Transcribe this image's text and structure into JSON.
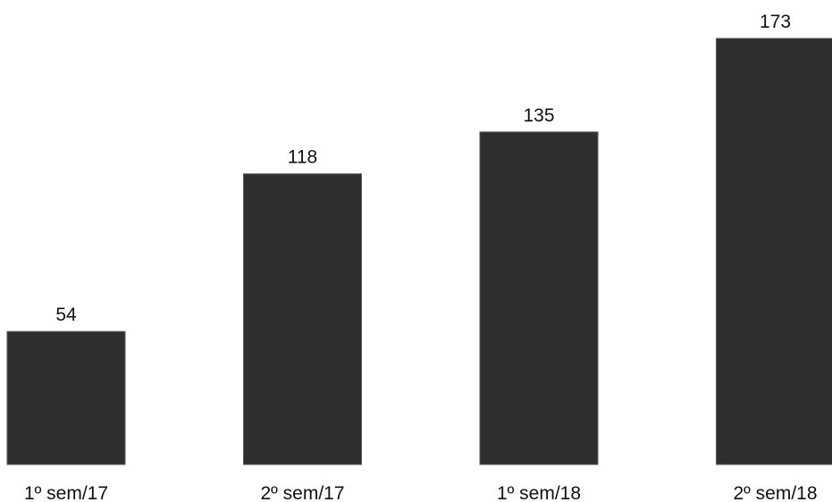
{
  "chart_data": {
    "type": "bar",
    "categories": [
      "1º sem/17",
      "2º sem/17",
      "1º sem/18",
      "2º sem/18"
    ],
    "values": [
      54,
      118,
      135,
      173
    ],
    "value_labels": [
      "54",
      "118",
      "135",
      "173"
    ],
    "title": "",
    "xlabel": "",
    "ylabel": "",
    "ylim": [
      0,
      173
    ],
    "grid": false,
    "legend": "none",
    "bar_color": "#2e2e2e"
  }
}
